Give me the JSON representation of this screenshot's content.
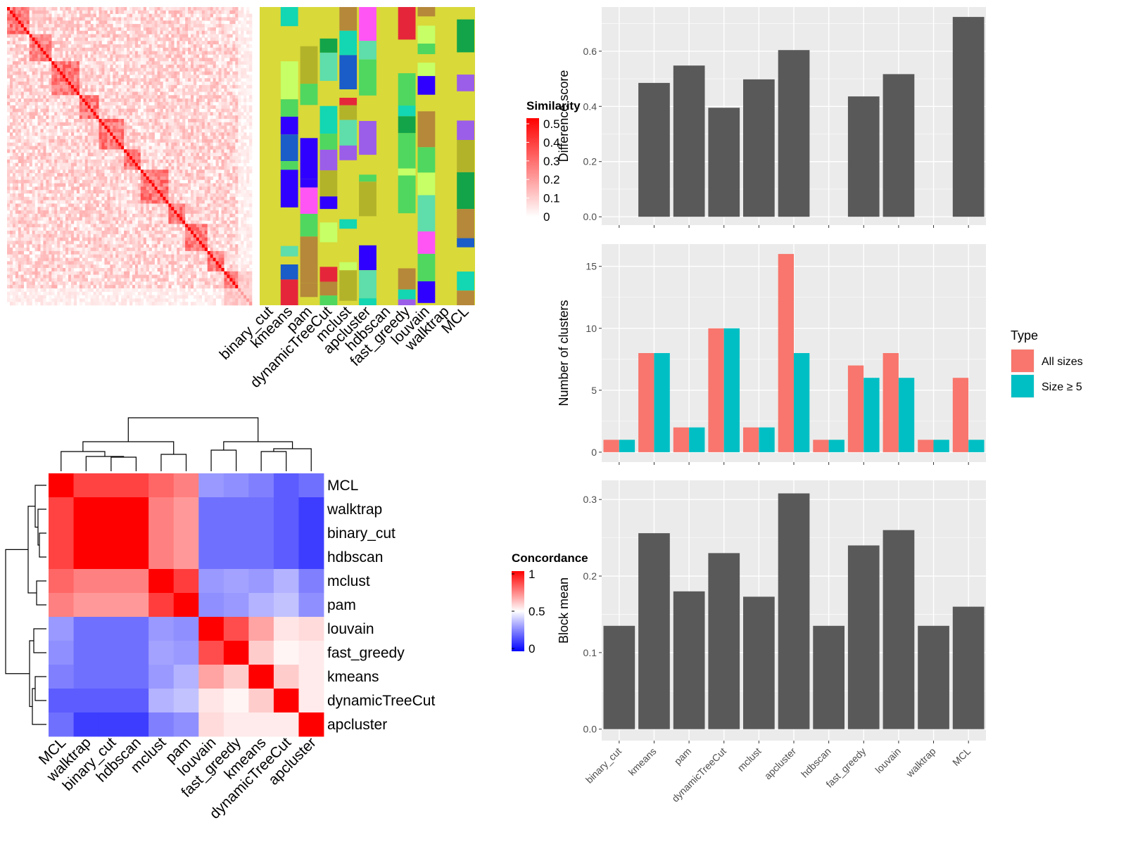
{
  "colors": {
    "sim_high": "#ff0000",
    "sim_low": "#ffffff",
    "conc_high": "#ff0000",
    "conc_mid": "#ffffff",
    "conc_low": "#0000ff",
    "bar": "#595959",
    "panel_bg": "#ebebeb",
    "grid": "#ffffff",
    "all_sizes": "#f8766d",
    "size_ge5": "#00bfc4",
    "partition_bg": "#d9d93a"
  },
  "similarity_heatmap": {
    "legend_title": "Similarity",
    "legend_ticks": [
      "0",
      "0.1",
      "0.2",
      "0.3",
      "0.4",
      "0.5"
    ],
    "block_sizes": [
      8,
      8,
      10,
      7,
      9,
      6,
      10,
      6,
      8,
      6,
      10
    ]
  },
  "partition_heatmap": {
    "methods": [
      "binary_cut",
      "kmeans",
      "pam",
      "dynamicTreeCut",
      "mclust",
      "apcluster",
      "hdbscan",
      "fast_greedy",
      "louvain",
      "walktrap",
      "MCL"
    ]
  },
  "concordance_heatmap": {
    "legend_title": "Concordance",
    "legend_ticks": [
      "0",
      "0.5",
      "1"
    ],
    "col_order": [
      "MCL",
      "walktrap",
      "binary_cut",
      "hdbscan",
      "mclust",
      "pam",
      "louvain",
      "fast_greedy",
      "kmeans",
      "dynamicTreeCut",
      "apcluster"
    ],
    "row_order": [
      "MCL",
      "walktrap",
      "binary_cut",
      "hdbscan",
      "mclust",
      "pam",
      "louvain",
      "fast_greedy",
      "kmeans",
      "dynamicTreeCut",
      "apcluster"
    ],
    "matrix": [
      [
        1.0,
        0.87,
        0.87,
        0.87,
        0.8,
        0.75,
        0.3,
        0.28,
        0.25,
        0.18,
        0.22
      ],
      [
        0.87,
        1.0,
        1.0,
        1.0,
        0.75,
        0.7,
        0.22,
        0.22,
        0.22,
        0.18,
        0.12
      ],
      [
        0.87,
        1.0,
        1.0,
        1.0,
        0.75,
        0.7,
        0.22,
        0.22,
        0.22,
        0.18,
        0.12
      ],
      [
        0.87,
        1.0,
        1.0,
        1.0,
        0.75,
        0.7,
        0.22,
        0.22,
        0.22,
        0.18,
        0.12
      ],
      [
        0.8,
        0.75,
        0.75,
        0.75,
        1.0,
        0.88,
        0.3,
        0.32,
        0.3,
        0.35,
        0.25
      ],
      [
        0.75,
        0.7,
        0.7,
        0.7,
        0.88,
        1.0,
        0.28,
        0.3,
        0.35,
        0.38,
        0.28
      ],
      [
        0.3,
        0.22,
        0.22,
        0.22,
        0.3,
        0.28,
        1.0,
        0.85,
        0.68,
        0.55,
        0.57
      ],
      [
        0.28,
        0.22,
        0.22,
        0.22,
        0.32,
        0.3,
        0.85,
        1.0,
        0.6,
        0.52,
        0.54
      ],
      [
        0.25,
        0.22,
        0.22,
        0.22,
        0.3,
        0.35,
        0.68,
        0.6,
        1.0,
        0.6,
        0.54
      ],
      [
        0.18,
        0.18,
        0.18,
        0.18,
        0.35,
        0.38,
        0.55,
        0.52,
        0.6,
        1.0,
        0.54
      ],
      [
        0.22,
        0.12,
        0.12,
        0.12,
        0.25,
        0.28,
        0.57,
        0.54,
        0.54,
        0.54,
        1.0
      ]
    ]
  },
  "chart_data": [
    {
      "type": "bar",
      "categories": [
        "binary_cut",
        "kmeans",
        "pam",
        "dynamicTreeCut",
        "mclust",
        "apcluster",
        "hdbscan",
        "fast_greedy",
        "louvain",
        "walktrap",
        "MCL"
      ],
      "values": [
        null,
        0.485,
        0.548,
        0.395,
        0.498,
        0.604,
        null,
        0.436,
        0.517,
        null,
        0.724
      ],
      "title": "",
      "xlabel": "",
      "ylabel": "Difference score",
      "ylim": [
        -0.03,
        0.76
      ],
      "yticks": [
        "0.0",
        "0.2",
        "0.4",
        "0.6"
      ],
      "grid": true
    },
    {
      "type": "bar",
      "categories": [
        "binary_cut",
        "kmeans",
        "pam",
        "dynamicTreeCut",
        "mclust",
        "apcluster",
        "hdbscan",
        "fast_greedy",
        "louvain",
        "walktrap",
        "MCL"
      ],
      "series": [
        {
          "name": "All sizes",
          "values": [
            1,
            8,
            2,
            10,
            2,
            16,
            1,
            7,
            8,
            1,
            6
          ]
        },
        {
          "name": "Size ≥ 5",
          "values": [
            1,
            8,
            2,
            10,
            2,
            8,
            1,
            6,
            6,
            1,
            1
          ]
        }
      ],
      "title": "",
      "xlabel": "",
      "ylabel": "Number of clusters",
      "ylim": [
        -0.8,
        16.8
      ],
      "yticks": [
        "0",
        "5",
        "10",
        "15"
      ],
      "legend_title": "Type",
      "legend_position": "right",
      "grid": true
    },
    {
      "type": "bar",
      "categories": [
        "binary_cut",
        "kmeans",
        "pam",
        "dynamicTreeCut",
        "mclust",
        "apcluster",
        "hdbscan",
        "fast_greedy",
        "louvain",
        "walktrap",
        "MCL"
      ],
      "values": [
        0.135,
        0.256,
        0.18,
        0.23,
        0.173,
        0.308,
        0.135,
        0.24,
        0.26,
        0.135,
        0.16
      ],
      "title": "",
      "xlabel": "",
      "ylabel": "Block mean",
      "ylim": [
        -0.015,
        0.325
      ],
      "yticks": [
        "0.0",
        "0.1",
        "0.2",
        "0.3"
      ],
      "grid": true
    }
  ]
}
